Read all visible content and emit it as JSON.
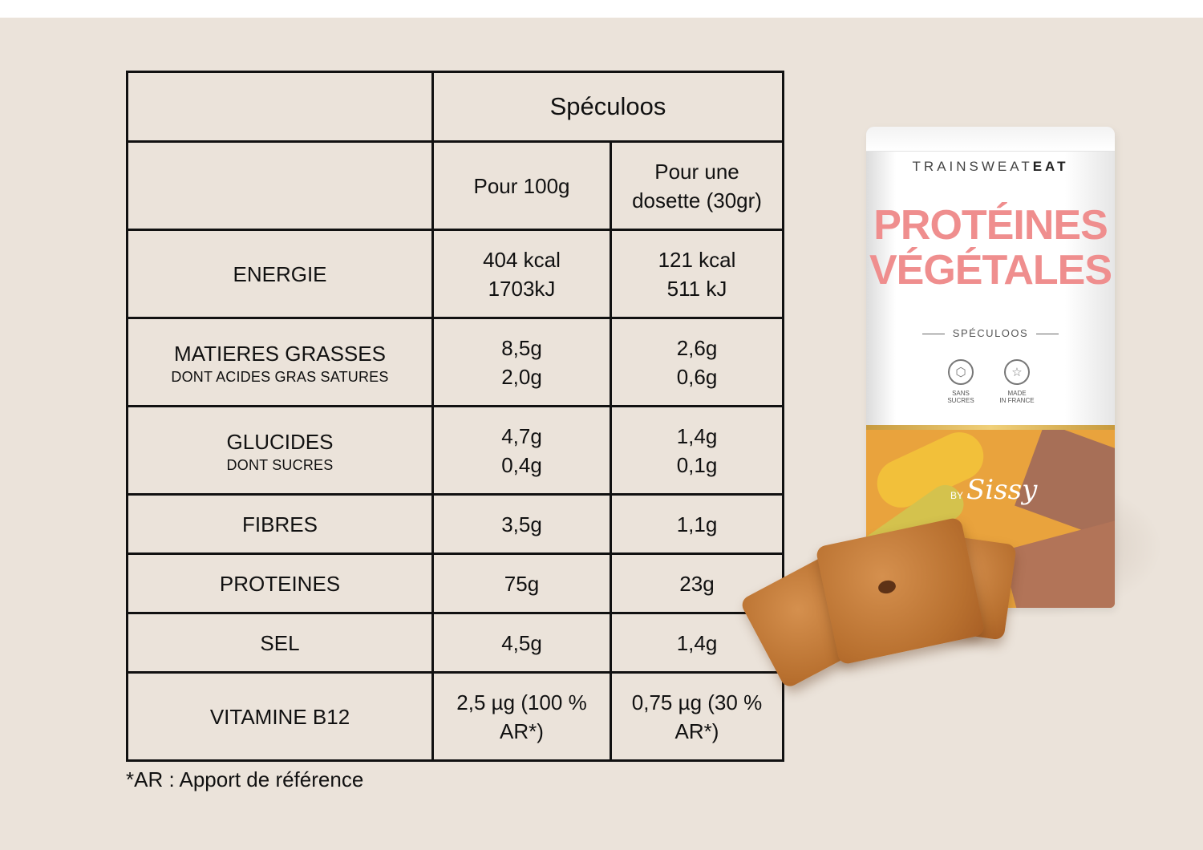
{
  "table": {
    "title": "Spéculoos",
    "col_a": "Pour 100g",
    "col_b": [
      "Pour une",
      "dosette (30gr)"
    ],
    "rows": [
      {
        "label": "ENERGIE",
        "sub": "",
        "a": [
          "404 kcal",
          "1703kJ"
        ],
        "b": [
          "121 kcal",
          "511 kJ"
        ]
      },
      {
        "label": "MATIERES GRASSES",
        "sub": "DONT ACIDES GRAS SATURES",
        "a": [
          "8,5g",
          "2,0g"
        ],
        "b": [
          "2,6g",
          "0,6g"
        ]
      },
      {
        "label": "GLUCIDES",
        "sub": "DONT SUCRES",
        "a": [
          "4,7g",
          "0,4g"
        ],
        "b": [
          "1,4g",
          "0,1g"
        ]
      },
      {
        "label": "FIBRES",
        "sub": "",
        "a": [
          "3,5g"
        ],
        "b": [
          "1,1g"
        ]
      },
      {
        "label": "PROTEINES",
        "sub": "",
        "a": [
          "75g"
        ],
        "b": [
          "23g"
        ]
      },
      {
        "label": "SEL",
        "sub": "",
        "a": [
          "4,5g"
        ],
        "b": [
          "1,4g"
        ]
      },
      {
        "label": "VITAMINE B12",
        "sub": "",
        "a": [
          "2,5 µg (100 %",
          "AR*)"
        ],
        "b": [
          "0,75 µg (30 %",
          "AR*)"
        ]
      }
    ]
  },
  "footnote": "*AR : Apport de référence",
  "product": {
    "brand_light": "TRAINSWEAT",
    "brand_bold": "EAT",
    "name_line1": "PROTÉINES",
    "name_line2": "VÉGÉTALES",
    "flavor": "SPÉCULOOS",
    "badge1_line1": "SANS",
    "badge1_line2": "SUCRES",
    "badge2_line1": "MADE",
    "badge2_line2": "IN FRANCE",
    "signature_prefix": "BY",
    "signature": "Sissy",
    "badge1_icon": "sugar-cube-icon",
    "badge2_icon": "france-map-icon",
    "name_color": "#ef8e8e",
    "band_color": "#e9a33d"
  }
}
